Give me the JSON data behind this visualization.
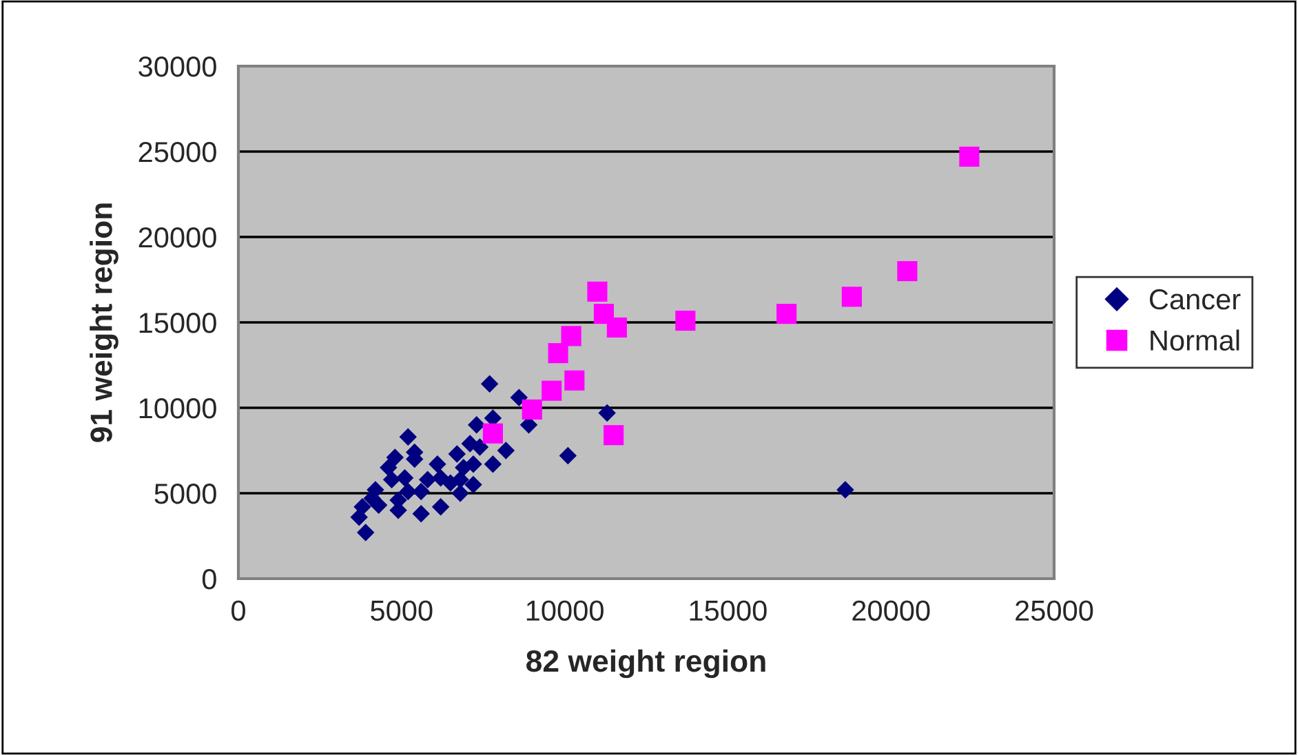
{
  "chart_data": {
    "type": "scatter",
    "xlabel": "82 weight region",
    "ylabel": "91 weight region",
    "xlim": [
      0,
      25000
    ],
    "ylim": [
      0,
      30000
    ],
    "xticks": [
      0,
      5000,
      10000,
      15000,
      20000,
      25000
    ],
    "yticks": [
      0,
      5000,
      10000,
      15000,
      20000,
      25000,
      30000
    ],
    "grid": "y",
    "legend": "right",
    "series": [
      {
        "name": "Cancer",
        "color": "#000080",
        "marker": "diamond",
        "x": [
          7700,
          8600,
          11300,
          8900,
          10100,
          8200,
          7800,
          7300,
          7800,
          5200,
          4800,
          5400,
          6100,
          6700,
          6900,
          7200,
          7100,
          7400,
          4600,
          4700,
          5100,
          4200,
          4100,
          3800,
          3700,
          3900,
          4900,
          5600,
          6200,
          5600,
          5800,
          6500,
          6800,
          7200,
          5200,
          4900,
          4300,
          5400,
          6200,
          6800,
          18600
        ],
        "values": [
          11400,
          10600,
          9700,
          9000,
          7200,
          7500,
          6700,
          9000,
          9400,
          8300,
          7100,
          7000,
          6700,
          7300,
          6500,
          6700,
          7900,
          7700,
          6500,
          5800,
          5900,
          5200,
          4700,
          4200,
          3600,
          2700,
          4000,
          3800,
          4200,
          5100,
          5800,
          5600,
          5000,
          5500,
          5100,
          4600,
          4300,
          7400,
          5900,
          5800,
          5200
        ]
      },
      {
        "name": "Normal",
        "color": "#ff00ff",
        "marker": "square",
        "x": [
          22400,
          20500,
          18800,
          16800,
          13700,
          11000,
          11200,
          11600,
          10200,
          9800,
          10300,
          9600,
          9000,
          11500,
          7800
        ],
        "values": [
          24700,
          18000,
          16500,
          15500,
          15100,
          16800,
          15500,
          14700,
          14200,
          13200,
          11600,
          11000,
          9900,
          8400,
          8500
        ]
      }
    ]
  }
}
